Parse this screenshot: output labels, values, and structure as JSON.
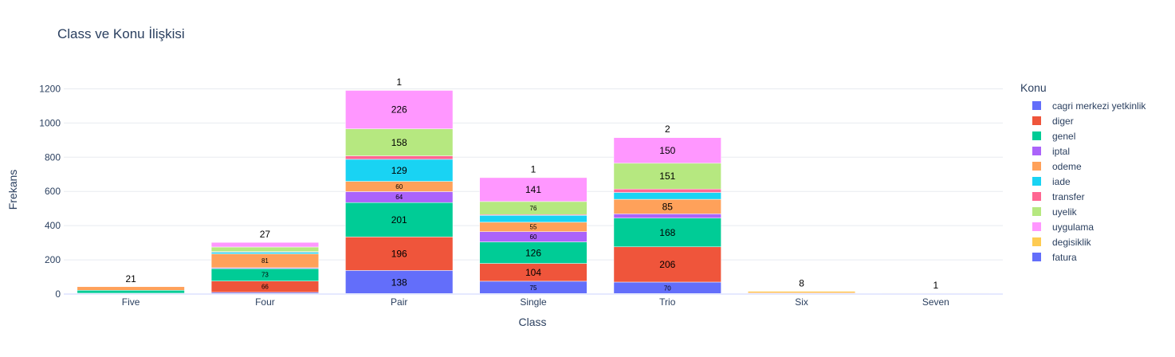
{
  "chart_data": {
    "type": "bar",
    "title": "Class ve Konu İlişkisi",
    "xlabel": "Class",
    "ylabel": "Frekans",
    "ylim": [
      0,
      1200
    ],
    "yticks": [
      0,
      200,
      400,
      600,
      800,
      1000,
      1200
    ],
    "categories": [
      "Five",
      "Four",
      "Pair",
      "Single",
      "Trio",
      "Six",
      "Seven"
    ],
    "legend_title": "Konu",
    "legend_position": "right",
    "grid": true,
    "series": [
      {
        "name": "fatura",
        "color": "#636efa",
        "values": [
          2,
          10,
          138,
          75,
          70,
          0,
          0
        ],
        "labels": [
          "",
          "",
          "138",
          "75",
          "70",
          "",
          ""
        ]
      },
      {
        "name": "diger",
        "color": "#ef553b",
        "values": [
          3,
          66,
          196,
          104,
          206,
          0,
          0
        ],
        "labels": [
          "",
          "66",
          "196",
          "104",
          "206",
          "",
          ""
        ]
      },
      {
        "name": "genel",
        "color": "#00cc96",
        "values": [
          17,
          73,
          201,
          126,
          168,
          0,
          4
        ],
        "labels": [
          "",
          "73",
          "201",
          "126",
          "168",
          "",
          ""
        ]
      },
      {
        "name": "iptal",
        "color": "#ab63fa",
        "values": [
          0,
          5,
          64,
          60,
          25,
          0,
          0
        ],
        "labels": [
          "",
          "",
          "64",
          "60",
          "",
          "",
          ""
        ]
      },
      {
        "name": "odeme",
        "color": "#ffa15a",
        "values": [
          21,
          81,
          60,
          55,
          85,
          8,
          0
        ],
        "labels": [
          "21",
          "81",
          "60",
          "55",
          "85",
          "8",
          ""
        ]
      },
      {
        "name": "iade",
        "color": "#19d3f3",
        "values": [
          0,
          10,
          129,
          40,
          40,
          0,
          0
        ],
        "labels": [
          "",
          "",
          "129",
          "",
          "",
          "",
          ""
        ]
      },
      {
        "name": "transfer",
        "color": "#ff6692",
        "values": [
          0,
          3,
          20,
          5,
          20,
          0,
          0
        ],
        "labels": [
          "",
          "",
          "",
          "",
          "",
          "",
          ""
        ]
      },
      {
        "name": "uyelik",
        "color": "#b6e880",
        "values": [
          0,
          27,
          158,
          76,
          151,
          0,
          0
        ],
        "labels": [
          "",
          "",
          "158",
          "76",
          "151",
          "",
          ""
        ]
      },
      {
        "name": "uygulama",
        "color": "#ff97ff",
        "values": [
          0,
          27,
          226,
          141,
          150,
          0,
          0
        ],
        "labels": [
          "",
          "",
          "226",
          "141",
          "150",
          "",
          ""
        ]
      },
      {
        "name": "degisiklik",
        "color": "#fecb52",
        "values": [
          0,
          0,
          1,
          1,
          2,
          8,
          1
        ],
        "labels": [
          "",
          "",
          "",
          "",
          "",
          "",
          ""
        ]
      },
      {
        "name": "cagri merkezi yetkinlik",
        "color": "#636efa",
        "values": [
          0,
          0,
          0,
          0,
          0,
          0,
          0
        ],
        "labels": [
          "",
          "",
          "",
          "",
          "",
          "",
          ""
        ]
      }
    ],
    "top_labels": [
      "21",
      "27",
      "1",
      "1",
      "2",
      "8",
      "1"
    ],
    "legend_order": [
      "cagri merkezi yetkinlik",
      "diger",
      "genel",
      "iptal",
      "odeme",
      "iade",
      "transfer",
      "uyelik",
      "uygulama",
      "degisiklik",
      "fatura"
    ]
  }
}
